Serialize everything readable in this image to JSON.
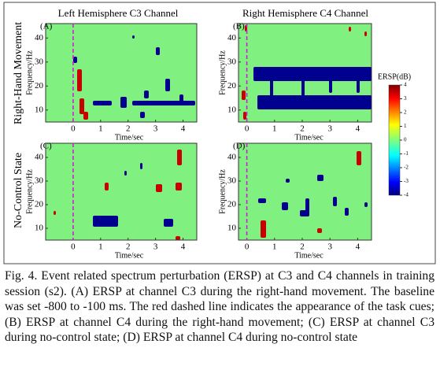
{
  "figure": {
    "columns": [
      "Left Hemisphere C3 Channel",
      "Right Hemisphere C4 Channel"
    ],
    "rows": [
      "Right-Hand Movement",
      "No-Control State"
    ],
    "panels": [
      {
        "label": "(A)",
        "xlim": [
          -1,
          4.5
        ]
      },
      {
        "label": "(B)",
        "xlim": [
          -0.3,
          4.5
        ]
      },
      {
        "label": "(C)",
        "xlim": [
          -1,
          4.5
        ]
      },
      {
        "label": "(D)",
        "xlim": [
          -0.3,
          4.5
        ]
      }
    ],
    "xlabel": "Time/sec",
    "ylabel": "Frequency/Hz",
    "xticks": [
      0,
      1,
      2,
      3,
      4
    ],
    "ylim": [
      5,
      46
    ],
    "yticks": [
      10,
      20,
      30,
      40
    ],
    "colorbar": {
      "title": "ERSP(dB)",
      "lim": [
        -4,
        4
      ],
      "ticks": [
        4,
        3,
        2,
        1,
        0,
        -1,
        -2,
        -3,
        -4
      ]
    }
  },
  "caption": "Fig. 4.  Event related spectrum perturbation (ERSP) at C3 and C4 channels in training session (s2). (A) ERSP at channel C3 during the right-hand movement. The baseline was set -800 to -100 ms. The red dashed line indicates the appearance of the task cues; (B) ERSP at channel C4 during the right-hand movement; (C) ERSP at channel C3 during no-control state; (D) ERSP at channel C4 during no-control state"
}
